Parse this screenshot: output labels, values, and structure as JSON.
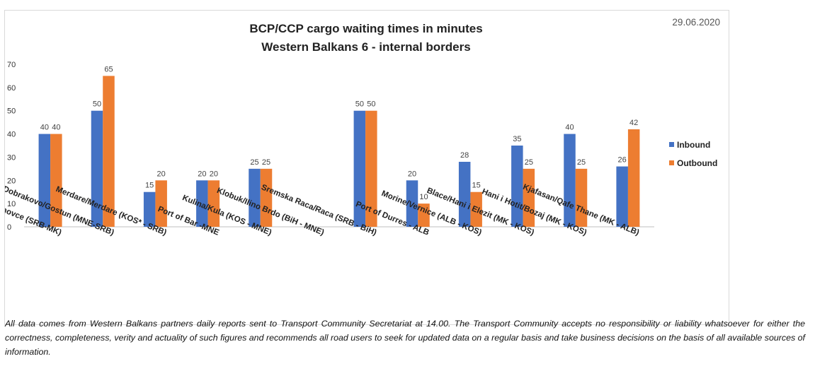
{
  "chart_data": {
    "type": "bar",
    "title": "BCP/CCP cargo waiting times in minutes",
    "subtitle": "Western Balkans 6 - internal borders",
    "date": "29.06.2020",
    "ylim": [
      0,
      70
    ],
    "yticks": [
      0,
      10,
      20,
      30,
      40,
      50,
      60,
      70
    ],
    "legend_position": "right",
    "categories": [
      "Presevo/ Tabanovce (SRB-MK)",
      "Dobrakovo/Gostun (MNE-SRB)",
      "Merdare/Merdare (KOS* - SRB)",
      "Port of Bar -MNE",
      "Kulina/Kula (KOS - MNE)",
      "Klobuk/Ilino Brdo (BiH - MNE)",
      "Sremska Raca/Raca (SRB - BiH)",
      "Port of Durres - ALB",
      "Morine/Vernice (ALB - KOS)",
      "Blace/Hani i Elezit (MK - KOS)",
      "Hani i Hotit/Bozaj (MK - KOS)",
      "Kjafasan/Qafe Thane (MK - ALB)"
    ],
    "series": [
      {
        "name": "Inbound",
        "color": "#4472C4",
        "values": [
          40,
          50,
          15,
          20,
          25,
          null,
          50,
          20,
          28,
          35,
          40,
          26
        ]
      },
      {
        "name": "Outbound",
        "color": "#ED7D31",
        "values": [
          40,
          65,
          20,
          20,
          25,
          null,
          50,
          10,
          15,
          25,
          25,
          42
        ]
      }
    ]
  },
  "footnote": "All data comes from Western Balkans partners daily reports sent to Transport Community Secretariat at 14.00. The Transport Community accepts no responsibility or liability whatsoever for either the correctness, completeness, verity and actuality of such figures and recommends all road users to seek for updated data on a regular basis and take business decisions on the basis of all available sources of information."
}
